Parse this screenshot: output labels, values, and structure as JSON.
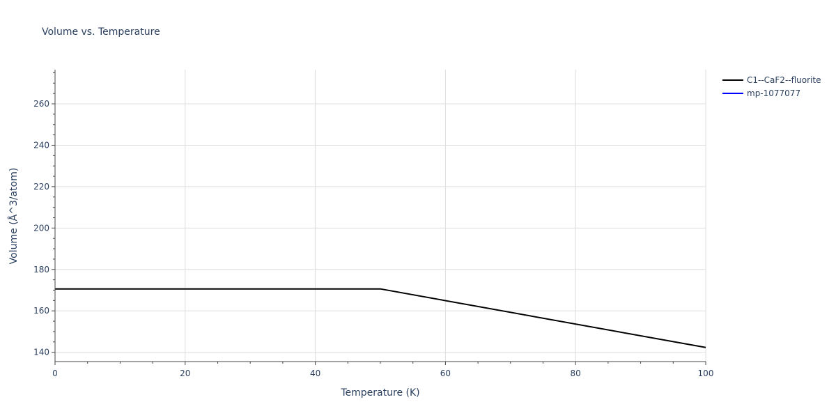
{
  "chart_data": {
    "type": "line",
    "title": "Volume vs. Temperature",
    "xlabel": "Temperature (K)",
    "ylabel": "Volume (Å^3/atom)",
    "xlim": [
      0,
      100
    ],
    "ylim": [
      135.5,
      276.5
    ],
    "x_ticks": [
      0,
      20,
      40,
      60,
      80,
      100
    ],
    "y_ticks": [
      140,
      160,
      180,
      200,
      220,
      240,
      260
    ],
    "grid": true,
    "legend_position": "top-right",
    "series": [
      {
        "name": "C1--CaF2--fluorite",
        "color": "#000000",
        "x": [
          0,
          50,
          100
        ],
        "y": [
          170.6,
          170.6,
          142.3
        ]
      },
      {
        "name": "mp-1077077",
        "color": "#0000ff",
        "x": [],
        "y": []
      }
    ]
  }
}
